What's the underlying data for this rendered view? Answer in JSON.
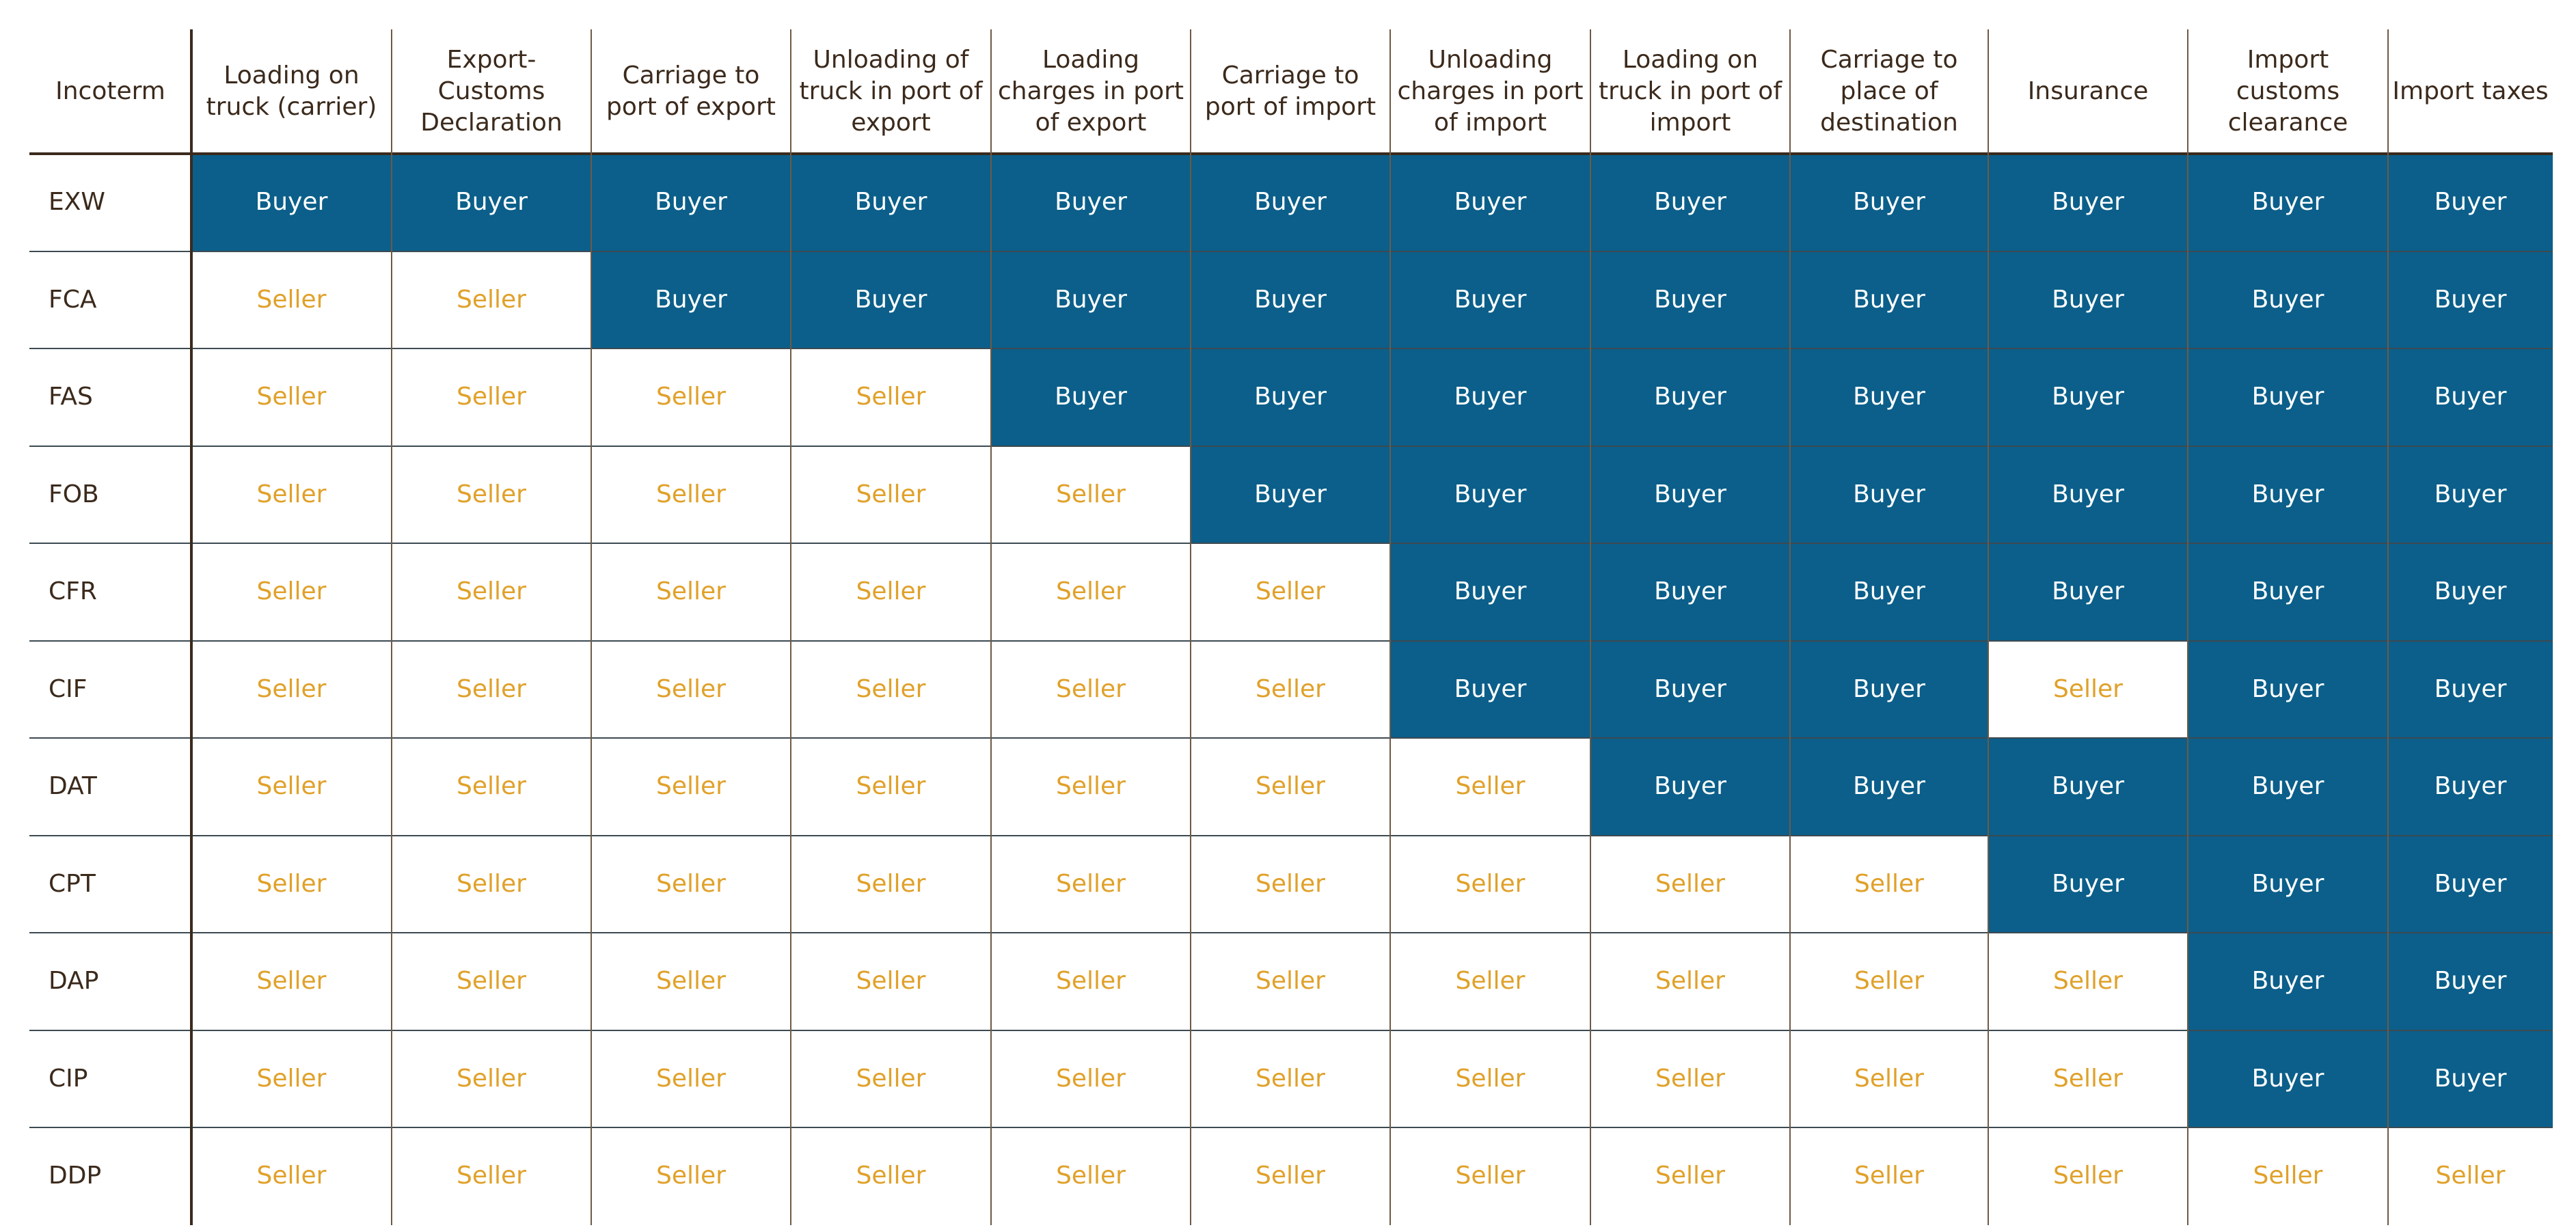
{
  "table": {
    "header": [
      "Incoterm",
      "Loading on truck (carrier)",
      "Export-Customs Declaration",
      "Carriage to port of export",
      "Unloading of truck in port of export",
      "Loading charges in port of export",
      "Carriage to port of import",
      "Unloading charges in port of import",
      "Loading on truck in port of import",
      "Carriage to place of destination",
      "Insurance",
      "Import customs clearance",
      "Import taxes"
    ],
    "rows": [
      [
        "EXW",
        "Buyer",
        "Buyer",
        "Buyer",
        "Buyer",
        "Buyer",
        "Buyer",
        "Buyer",
        "Buyer",
        "Buyer",
        "Buyer",
        "Buyer",
        "Buyer"
      ],
      [
        "FCA",
        "Seller",
        "Seller",
        "Buyer",
        "Buyer",
        "Buyer",
        "Buyer",
        "Buyer",
        "Buyer",
        "Buyer",
        "Buyer",
        "Buyer",
        "Buyer"
      ],
      [
        "FAS",
        "Seller",
        "Seller",
        "Seller",
        "Seller",
        "Buyer",
        "Buyer",
        "Buyer",
        "Buyer",
        "Buyer",
        "Buyer",
        "Buyer",
        "Buyer"
      ],
      [
        "FOB",
        "Seller",
        "Seller",
        "Seller",
        "Seller",
        "Seller",
        "Buyer",
        "Buyer",
        "Buyer",
        "Buyer",
        "Buyer",
        "Buyer",
        "Buyer"
      ],
      [
        "CFR",
        "Seller",
        "Seller",
        "Seller",
        "Seller",
        "Seller",
        "Seller",
        "Buyer",
        "Buyer",
        "Buyer",
        "Buyer",
        "Buyer",
        "Buyer"
      ],
      [
        "CIF",
        "Seller",
        "Seller",
        "Seller",
        "Seller",
        "Seller",
        "Seller",
        "Buyer",
        "Buyer",
        "Buyer",
        "Seller",
        "Buyer",
        "Buyer"
      ],
      [
        "DAT",
        "Seller",
        "Seller",
        "Seller",
        "Seller",
        "Seller",
        "Seller",
        "Seller",
        "Buyer",
        "Buyer",
        "Buyer",
        "Buyer",
        "Buyer"
      ],
      [
        "CPT",
        "Seller",
        "Seller",
        "Seller",
        "Seller",
        "Seller",
        "Seller",
        "Seller",
        "Seller",
        "Seller",
        "Buyer",
        "Buyer",
        "Buyer"
      ],
      [
        "DAP",
        "Seller",
        "Seller",
        "Seller",
        "Seller",
        "Seller",
        "Seller",
        "Seller",
        "Seller",
        "Seller",
        "Seller",
        "Buyer",
        "Buyer"
      ],
      [
        "CIP",
        "Seller",
        "Seller",
        "Seller",
        "Seller",
        "Seller",
        "Seller",
        "Seller",
        "Seller",
        "Seller",
        "Seller",
        "Buyer",
        "Buyer"
      ],
      [
        "DDP",
        "Seller",
        "Seller",
        "Seller",
        "Seller",
        "Seller",
        "Seller",
        "Seller",
        "Seller",
        "Seller",
        "Seller",
        "Seller",
        "Seller"
      ]
    ]
  }
}
